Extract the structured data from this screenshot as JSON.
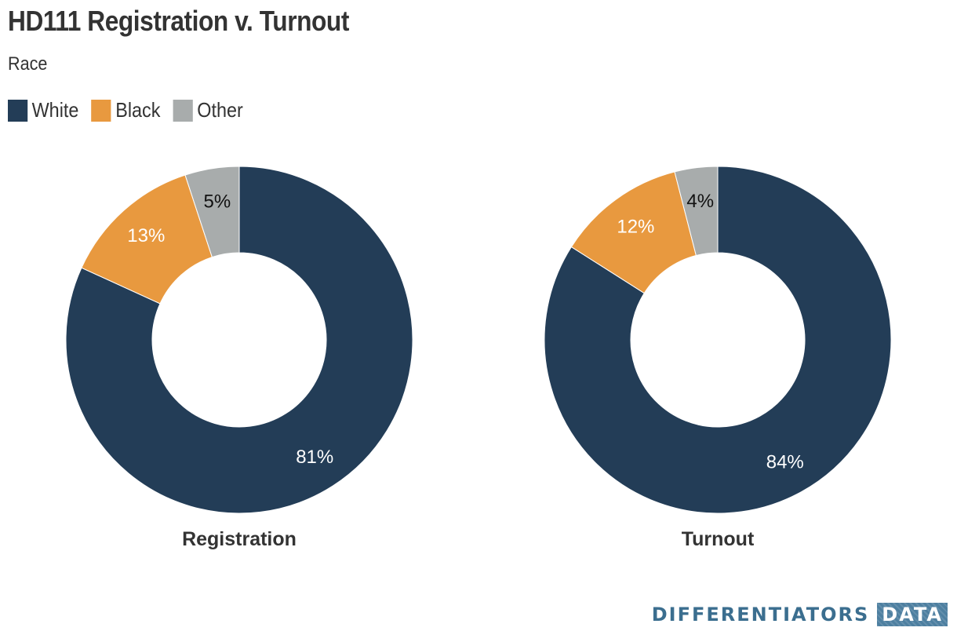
{
  "title": "HD111 Registration v. Turnout",
  "subtitle": "Race",
  "colors": {
    "White": "#233d57",
    "Black": "#e8993f",
    "Other": "#a8acac"
  },
  "legend": [
    {
      "label": "White",
      "color": "#233d57"
    },
    {
      "label": "Black",
      "color": "#e8993f"
    },
    {
      "label": "Other",
      "color": "#a8acac"
    }
  ],
  "chart_data": [
    {
      "type": "pie",
      "title": "Registration",
      "categories": [
        "White",
        "Black",
        "Other"
      ],
      "values": [
        81,
        13,
        5
      ],
      "labels": [
        "81%",
        "13%",
        "5%"
      ],
      "legend_position": "top-left"
    },
    {
      "type": "pie",
      "title": "Turnout",
      "categories": [
        "White",
        "Black",
        "Other"
      ],
      "values": [
        84,
        12,
        4
      ],
      "labels": [
        "84%",
        "12%",
        "4%"
      ],
      "legend_position": "top-left"
    }
  ],
  "brand": {
    "word": "DIFFERENTIATORS",
    "box": "DATA"
  }
}
